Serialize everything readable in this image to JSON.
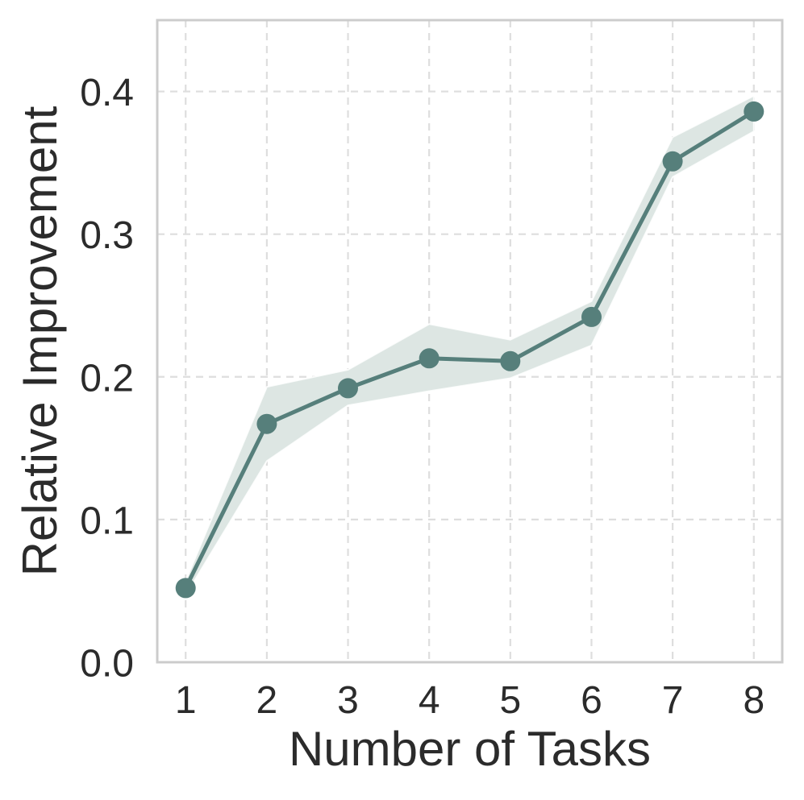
{
  "chart_data": {
    "type": "line",
    "title": "",
    "xlabel": "Number of Tasks",
    "ylabel": "Relative Improvement",
    "x": [
      1,
      2,
      3,
      4,
      5,
      6,
      7,
      8
    ],
    "xtick_labels": [
      "1",
      "2",
      "3",
      "4",
      "5",
      "6",
      "7",
      "8"
    ],
    "yticks": [
      0.0,
      0.1,
      0.2,
      0.3,
      0.4
    ],
    "ytick_labels": [
      "0.0",
      "0.1",
      "0.2",
      "0.3",
      "0.4"
    ],
    "xlim": [
      0.65,
      8.35
    ],
    "ylim": [
      0.0,
      0.45
    ],
    "grid": true,
    "grid_style": "dashed",
    "legend": false,
    "series": [
      {
        "name": "relative-improvement",
        "values": [
          0.052,
          0.167,
          0.192,
          0.213,
          0.211,
          0.242,
          0.351,
          0.386
        ],
        "band_lower": [
          0.047,
          0.141,
          0.18,
          0.19,
          0.199,
          0.222,
          0.34,
          0.372
        ],
        "band_upper": [
          0.057,
          0.193,
          0.205,
          0.237,
          0.226,
          0.253,
          0.368,
          0.397
        ]
      }
    ],
    "style": {
      "line_color": "#567f7b",
      "marker_color": "#567f7b",
      "band_color": "#dde6e3",
      "band_edge_color": "#ffffff",
      "grid_color": "#dedede",
      "spine_color": "#cccccc",
      "text_color": "#2b2b2b",
      "background": "#ffffff",
      "marker": "circle"
    }
  }
}
